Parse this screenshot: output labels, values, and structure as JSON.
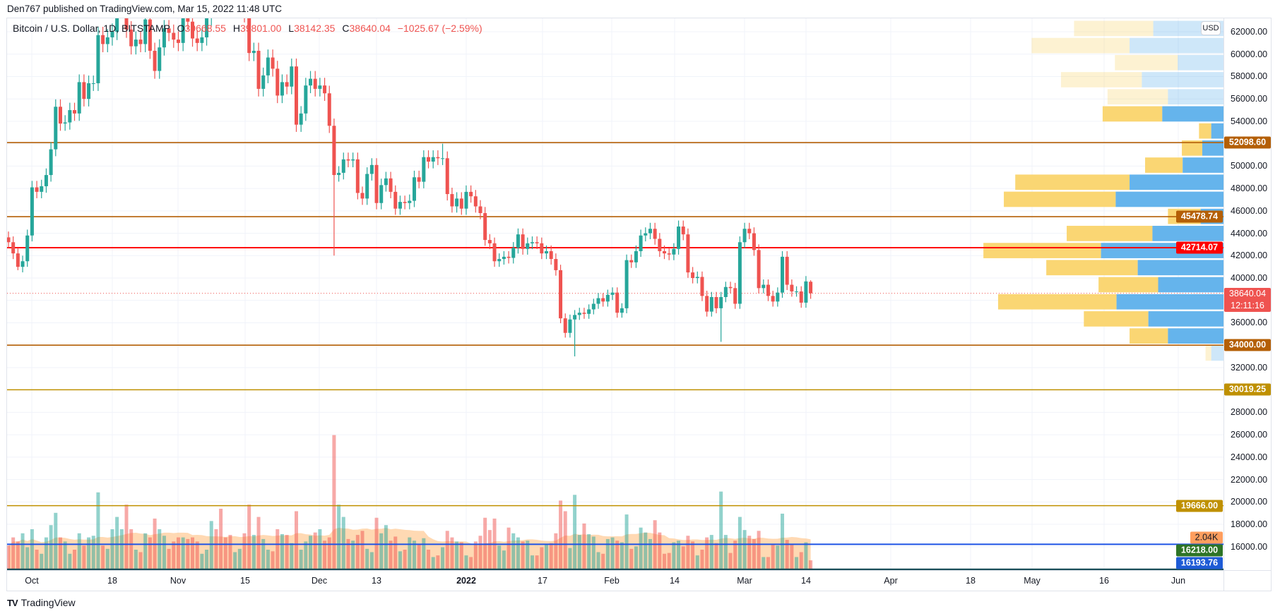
{
  "publisher_line": "Den767 published on TradingView.com, Mar 15, 2022 11:48 UTC",
  "legend": {
    "symbol": "Bitcoin / U.S. Dollar, 1D, BITSTAMP",
    "o_label": "O",
    "o": "39668.55",
    "h_label": "H",
    "h": "39801.00",
    "l_label": "L",
    "l": "38142.35",
    "c_label": "C",
    "c": "38640.04",
    "change": "−1025.67 (−2.59%)"
  },
  "currency_badge": "USD",
  "price_axis": [
    "62000.00",
    "60000.00",
    "58000.00",
    "56000.00",
    "54000.00",
    "50000.00",
    "48000.00",
    "46000.00",
    "44000.00",
    "42000.00",
    "40000.00",
    "36000.00",
    "32000.00",
    "28000.00",
    "26000.00",
    "24000.00",
    "22000.00",
    "20000.00",
    "18000.00",
    "16000.00"
  ],
  "level_tags": [
    {
      "price": 52098.6,
      "text": "52098.60",
      "color": "#b45f06"
    },
    {
      "price": 45478.74,
      "text": "45478.74",
      "color": "#b45f06"
    },
    {
      "price": 42714.07,
      "text": "42714.07",
      "color": "#ff0000"
    },
    {
      "price": 34000.0,
      "text": "34000.00",
      "color": "#b45f06"
    },
    {
      "price": 30019.25,
      "text": "30019.25",
      "color": "#bf9000"
    },
    {
      "price": 19666.0,
      "text": "19666.00",
      "color": "#bf9000"
    },
    {
      "price": 16218.0,
      "text": "16218.00",
      "color": "#2d7426"
    },
    {
      "price": 16193.76,
      "text": "16193.76",
      "color": "#1e5bd6"
    }
  ],
  "current_price": {
    "text": "38640.04",
    "countdown": "12:11:16",
    "color": "#ef5350"
  },
  "volume_tag": {
    "text": "2.04K",
    "color": "#ff9e5e"
  },
  "x_axis": [
    "Oct",
    "18",
    "Nov",
    "15",
    "Dec",
    "13",
    "2022",
    "17",
    "Feb",
    "14",
    "Mar",
    "14",
    "Apr",
    "18",
    "May",
    "16",
    "Jun"
  ],
  "footer_logo": "TradingView",
  "colors": {
    "up": "#26a69a",
    "down": "#ef5350",
    "vp_up": "#fad46b",
    "vp_down": "#5db0eb",
    "vol_ma": "#ffcc99"
  },
  "chart_data": {
    "type": "candlestick",
    "title": "Bitcoin / U.S. Dollar, 1D, BITSTAMP",
    "start_date": "2021-09-26",
    "ylim": [
      14000,
      64000
    ],
    "closes": [
      43200,
      42200,
      41000,
      41500,
      43800,
      48100,
      47700,
      48200,
      49200,
      51500,
      55300,
      53800,
      53900,
      55000,
      54700,
      57500,
      56000,
      57400,
      57400,
      61700,
      60900,
      61500,
      62000,
      64300,
      66000,
      62200,
      60700,
      61300,
      60900,
      63100,
      60300,
      58500,
      60600,
      62300,
      61900,
      61300,
      61000,
      63300,
      62900,
      61400,
      61000,
      61500,
      63300,
      67500,
      66900,
      64900,
      64800,
      64100,
      64400,
      65500,
      63600,
      60100,
      60300,
      56900,
      58100,
      59700,
      58700,
      56300,
      57500,
      57100,
      58900,
      53700,
      54700,
      57200,
      57800,
      56900,
      57200,
      56500,
      53600,
      49200,
      49400,
      50600,
      50500,
      50600,
      47600,
      47100,
      49300,
      50100,
      46700,
      48300,
      48900,
      47700,
      46200,
      46800,
      46700,
      46900,
      49000,
      48600,
      50800,
      50400,
      50800,
      50700,
      50700,
      47500,
      46400,
      47100,
      46200,
      47700,
      47300,
      46400,
      45800,
      43400,
      43100,
      41500,
      41700,
      41900,
      41800,
      42700,
      43900,
      42600,
      43100,
      43200,
      43100,
      42200,
      42400,
      41700,
      40700,
      36400,
      35100,
      36300,
      36700,
      36900,
      36800,
      37200,
      37700,
      38200,
      37900,
      38500,
      38700,
      36900,
      37300,
      41600,
      41400,
      42400,
      43800,
      44000,
      44400,
      43500,
      42400,
      42200,
      42100,
      42600,
      44600,
      43900,
      40500,
      40000,
      40100,
      38400,
      37000,
      38300,
      37300,
      38300,
      39200,
      39100,
      37700,
      43200,
      44400,
      44000,
      42500,
      39100,
      39400,
      38400,
      37900,
      38700,
      41900,
      39400,
      38800,
      38800,
      37800,
      39700,
      38640.04
    ],
    "last_candle": {
      "open": 39668.55,
      "high": 39801.0,
      "low": 38142.35,
      "close": 38640.04
    },
    "wick_overrides": [
      {
        "index": 69,
        "low": 42000
      },
      {
        "index": 92,
        "high": 52000
      },
      {
        "index": 120,
        "low": 33000
      },
      {
        "index": 151,
        "low": 34300
      },
      {
        "index": 2,
        "low": 40700
      }
    ],
    "volume_k": [
      3,
      4,
      3.5,
      4.5,
      2.8,
      5,
      2.5,
      2,
      4,
      5.5,
      7,
      4,
      3.5,
      2,
      2.5,
      4.5,
      3,
      4,
      4.2,
      9.5,
      3,
      2.6,
      5,
      6.5,
      5,
      8,
      5,
      2.5,
      2.2,
      4.5,
      4,
      6.3,
      5,
      4.2,
      2.6,
      3.5,
      4,
      4,
      3.8,
      4,
      3.5,
      2,
      2.5,
      6,
      5,
      7.5,
      4,
      4.3,
      2.2,
      2.6,
      4.5,
      8,
      4.3,
      6.5,
      3.8,
      2.5,
      2.3,
      5,
      4.4,
      4.3,
      3.3,
      7.2,
      2.5,
      3.5,
      4.2,
      4.6,
      5,
      3.6,
      4,
      16.5,
      8,
      6.5,
      3.8,
      3.6,
      4.3,
      4.8,
      2.6,
      2.2,
      6.4,
      4.5,
      5.5,
      3.6,
      4.1,
      2.3,
      2.5,
      4,
      3.6,
      3.2,
      3.9,
      2.5,
      1.6,
      1.8,
      2.8,
      4.8,
      4,
      3.5,
      3.4,
      1.8,
      1.6,
      3.5,
      4.2,
      6.4,
      4.9,
      6.3,
      3,
      2.4,
      5.2,
      4.5,
      4,
      3.5,
      3.6,
      1.8,
      1.8,
      2.8,
      3.2,
      3.3,
      4.5,
      8.5,
      7.2,
      2.7,
      9.2,
      4.3,
      5.7,
      4.4,
      4.1,
      2.2,
      2,
      3.8,
      4,
      3.6,
      3.4,
      6.8,
      2.6,
      2.9,
      5.2,
      4.6,
      3.8,
      6.1,
      4.6,
      2,
      2.1,
      3.4,
      3.6,
      2.9,
      4.2,
      3.5,
      1.8,
      2.5,
      4,
      4.3,
      3.3,
      9.6,
      4.3,
      2.1,
      3.6,
      6.5,
      4.9,
      4.2,
      3.8,
      4.8,
      1.6,
      1.6,
      3.1,
      3,
      6.9,
      3.7,
      3.2,
      1.6,
      2.2,
      3.4,
      1.2
    ],
    "volume_profile": {
      "top_price": 63040,
      "row_size": 1526,
      "rows": [
        {
          "up": 97,
          "down": 86,
          "value_area": false
        },
        {
          "up": 120,
          "down": 115,
          "value_area": false
        },
        {
          "up": 77,
          "down": 56,
          "value_area": false
        },
        {
          "up": 99,
          "down": 100,
          "value_area": false
        },
        {
          "up": 74,
          "down": 68,
          "value_area": false
        },
        {
          "up": 73,
          "down": 75,
          "value_area": true
        },
        {
          "up": 15,
          "down": 15,
          "value_area": true
        },
        {
          "up": 25,
          "down": 26,
          "value_area": true
        },
        {
          "up": 46,
          "down": 50,
          "value_area": true
        },
        {
          "up": 140,
          "down": 115,
          "value_area": true
        },
        {
          "up": 137,
          "down": 132,
          "value_area": true
        },
        {
          "up": 40,
          "down": 28,
          "value_area": true
        },
        {
          "up": 105,
          "down": 87,
          "value_area": true
        },
        {
          "up": 144,
          "down": 150,
          "value_area": true
        },
        {
          "up": 112,
          "down": 105,
          "value_area": true
        },
        {
          "up": 73,
          "down": 80,
          "value_area": true
        },
        {
          "up": 145,
          "down": 131,
          "value_area": true
        },
        {
          "up": 79,
          "down": 92,
          "value_area": true
        },
        {
          "up": 47,
          "down": 68,
          "value_area": true
        },
        {
          "up": 7,
          "down": 15,
          "value_area": false
        }
      ]
    }
  }
}
